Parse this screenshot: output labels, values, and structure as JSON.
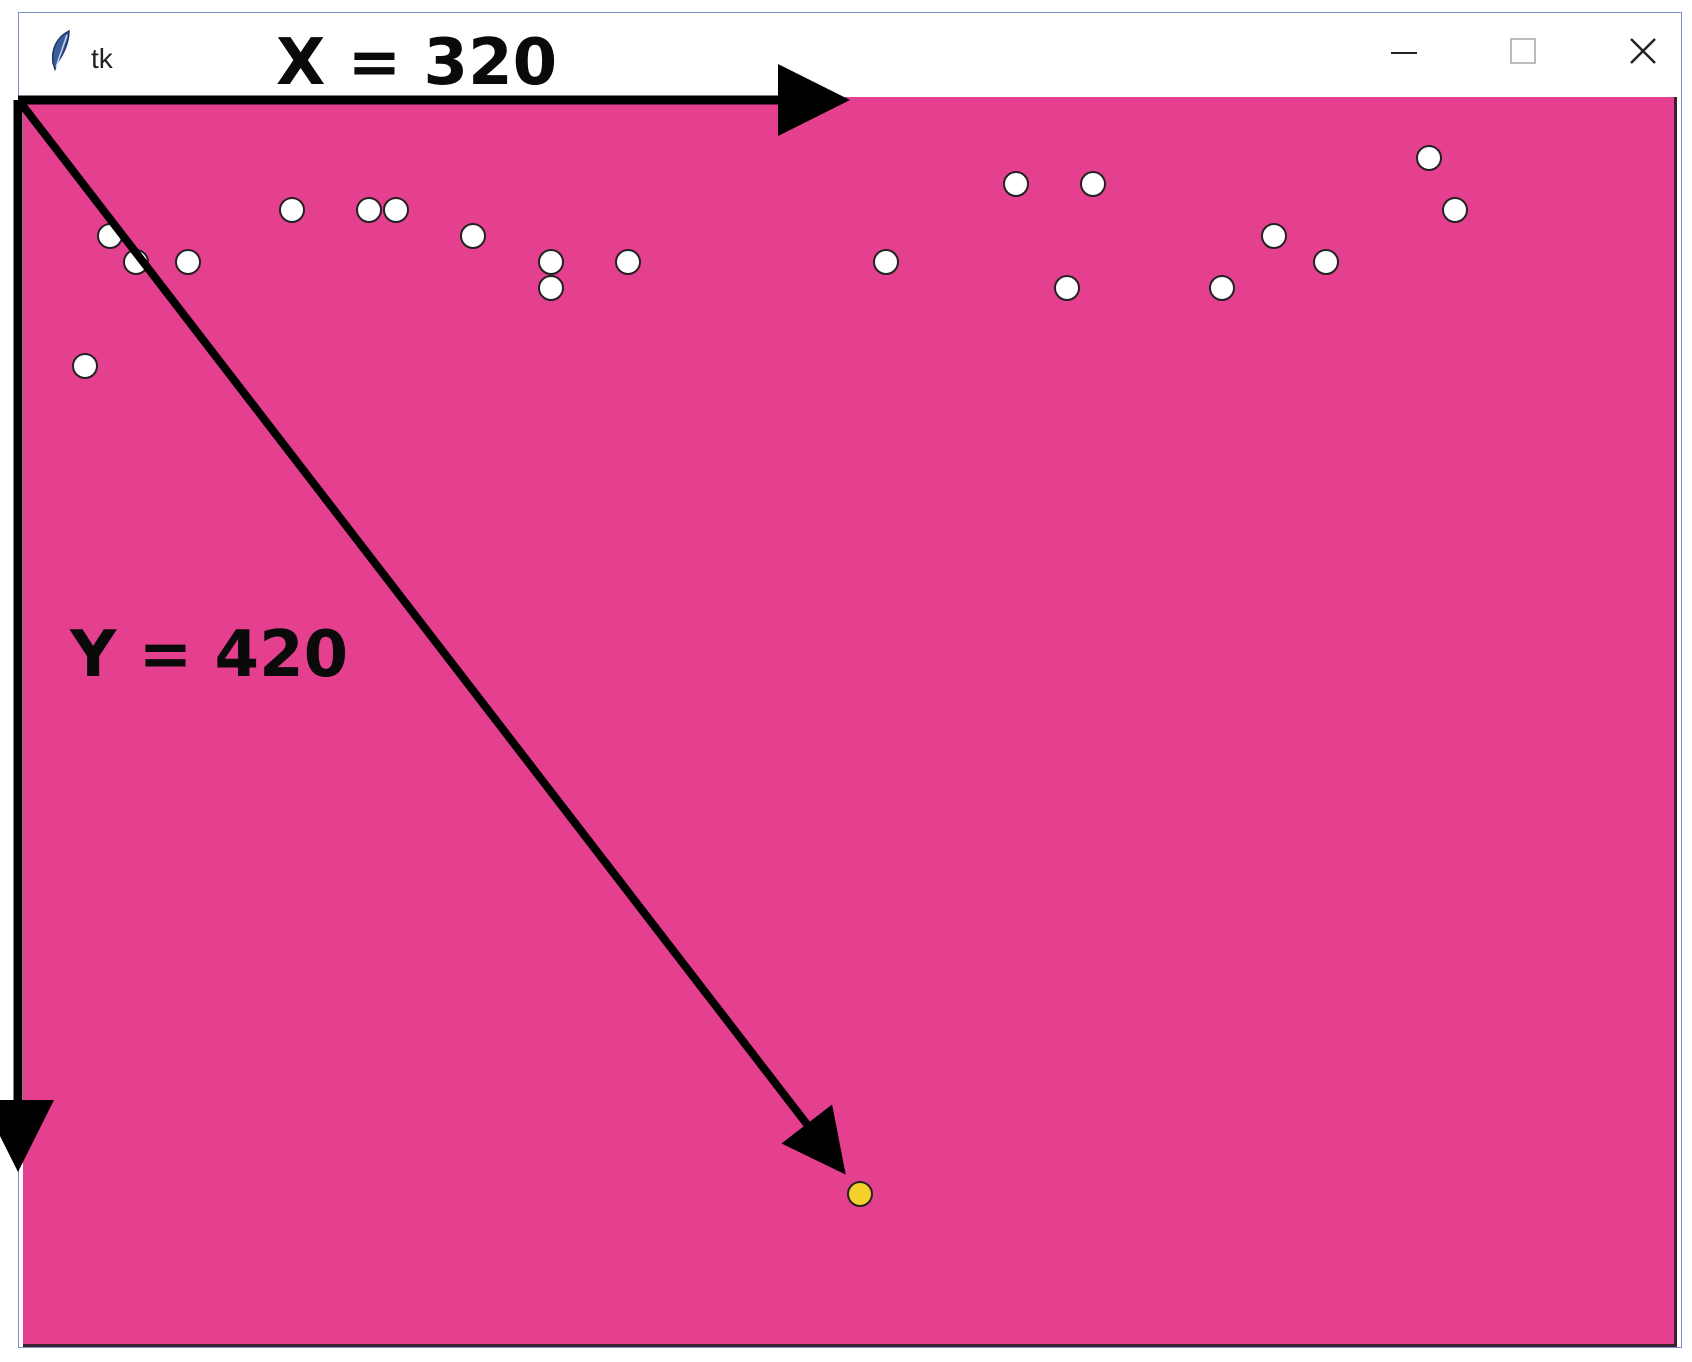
{
  "window": {
    "title": "tk",
    "icon": "feather-icon",
    "controls": [
      "minimize-icon",
      "maximize-icon",
      "close-icon"
    ]
  },
  "canvas": {
    "background": "#e54090",
    "ball_color": "#ffffff",
    "target_ball_color": "#f5d02a"
  },
  "annotations": {
    "x_label": "X = 320",
    "y_label": "Y = 420"
  }
}
